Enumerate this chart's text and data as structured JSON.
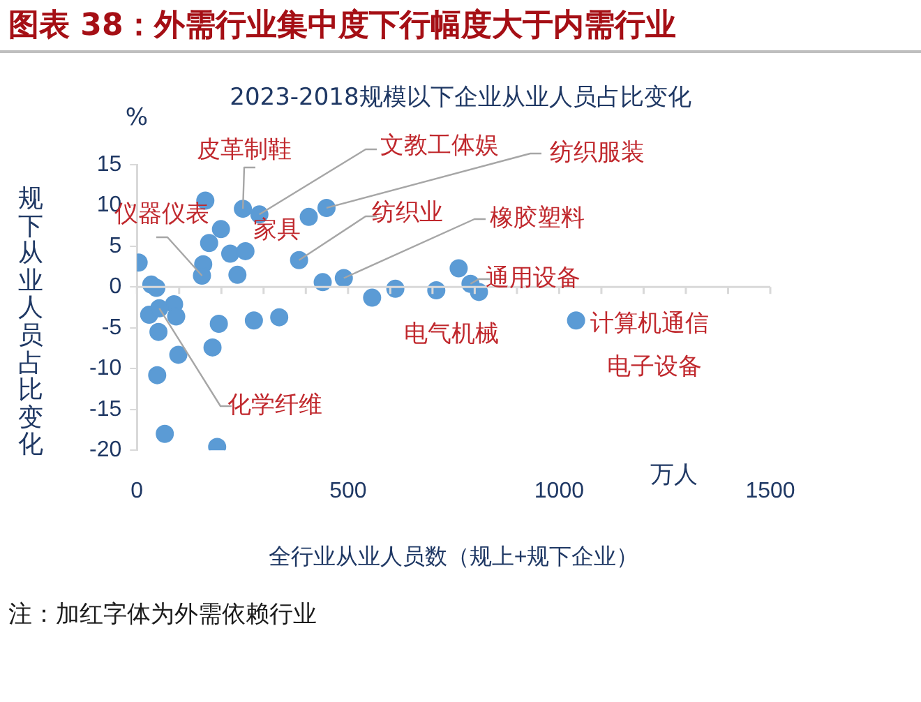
{
  "chart_data": {
    "type": "scatter",
    "title": "图表 38：外需行业集中度下行幅度大于内需行业",
    "subtitle": "2023-2018规模以下企业从业人员占比变化",
    "xlabel": "全行业从业人员数（规上+规下企业）",
    "ylabel": "规下从业人员占比变化",
    "xlim": [
      0,
      1500
    ],
    "ylim": [
      -20,
      15
    ],
    "xticks": [
      0,
      {
        "value": 100,
        "label": null
      },
      {
        "value": 200,
        "label": null
      },
      {
        "value": 300,
        "label": null
      },
      {
        "value": 400,
        "label": null
      },
      500,
      {
        "value": 600,
        "label": null
      },
      {
        "value": 700,
        "label": null
      },
      {
        "value": 800,
        "label": null
      },
      {
        "value": 900,
        "label": null
      },
      1000,
      {
        "value": 1100,
        "label": null
      },
      {
        "value": 1200,
        "label": null
      },
      {
        "value": 1300,
        "label": null
      },
      {
        "value": 1400,
        "label": null
      },
      1500
    ],
    "yticks": [
      -20,
      -15,
      -10,
      -5,
      0,
      5,
      10,
      15
    ],
    "marker": "circle",
    "series": [
      {
        "color": "#5b9bd5",
        "x": [
          4,
          34,
          46,
          162,
          251,
          290,
          199,
          407,
          449,
          171,
          221,
          257,
          157,
          154,
          238,
          384,
          440,
          490,
          557,
          612,
          709,
          762,
          790,
          810,
          1040,
          88,
          29,
          53,
          93,
          194,
          277,
          337,
          51,
          179,
          98,
          48,
          66,
          190
        ],
        "values": [
          3.0,
          0.3,
          -0.1,
          10.6,
          9.6,
          8.9,
          7.1,
          8.6,
          9.7,
          5.4,
          4.1,
          4.4,
          2.8,
          1.4,
          1.5,
          3.3,
          0.6,
          1.1,
          -1.3,
          -0.2,
          -0.4,
          2.3,
          0.4,
          -0.6,
          -4.1,
          -2.1,
          -3.4,
          -2.6,
          -3.6,
          -4.5,
          -4.1,
          -3.7,
          -5.5,
          -7.4,
          -8.3,
          -10.8,
          -18.0,
          -19.6
        ]
      }
    ],
    "annotations": [
      {
        "text": "皮革制鞋",
        "x": 251,
        "y": 9.6
      },
      {
        "text": "文教工体娱",
        "x": 290,
        "y": 8.9
      },
      {
        "text": "纺织服装",
        "x": 449,
        "y": 9.7
      },
      {
        "text": "仪器仪表",
        "x": 154,
        "y": 1.4
      },
      {
        "text": "家具",
        "x": 407,
        "y": 8.6
      },
      {
        "text": "纺织业",
        "x": 384,
        "y": 3.3
      },
      {
        "text": "橡胶塑料",
        "x": 490,
        "y": 1.1
      },
      {
        "text": "通用设备",
        "x": 790,
        "y": 0.4
      },
      {
        "text": "电气机械",
        "x": 557,
        "y": -1.3
      },
      {
        "text": "计算机通信",
        "x": 1040,
        "y": -4.1
      },
      {
        "text": "电子设备",
        "x": 1040,
        "y": -4.1
      },
      {
        "text": "化学纤维",
        "x": 53,
        "y": -2.6
      },
      "%",
      "万人",
      "注：加红字体为外需依赖行业"
    ]
  }
}
